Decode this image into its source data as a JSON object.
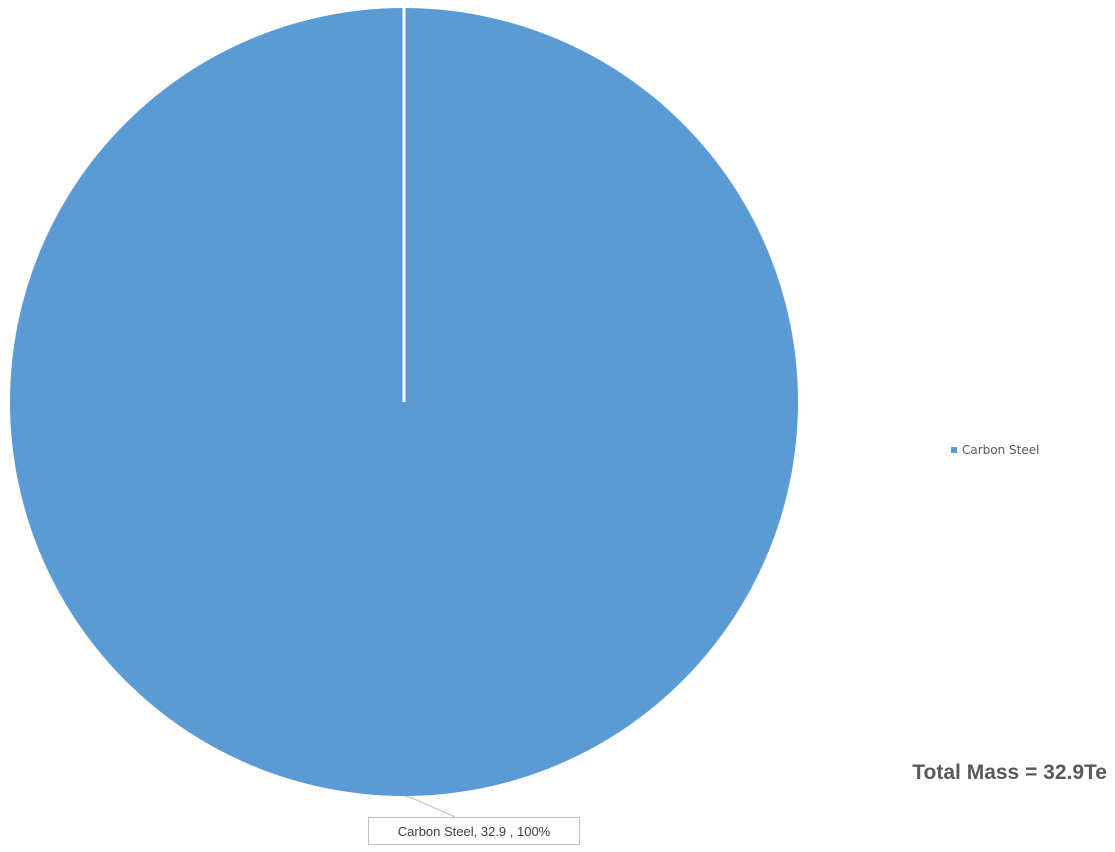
{
  "chart_data": {
    "type": "pie",
    "title": "",
    "slices": [
      {
        "label": "Carbon Steel",
        "value": 32.9,
        "percent": 100,
        "color": "#5B9BD5"
      }
    ],
    "data_label": "Carbon Steel,  32.9 , 100%",
    "legend": {
      "placement": "right",
      "entries": [
        "Carbon Steel"
      ]
    }
  },
  "annotation": {
    "total_mass": "Total Mass = 32.9Te"
  }
}
